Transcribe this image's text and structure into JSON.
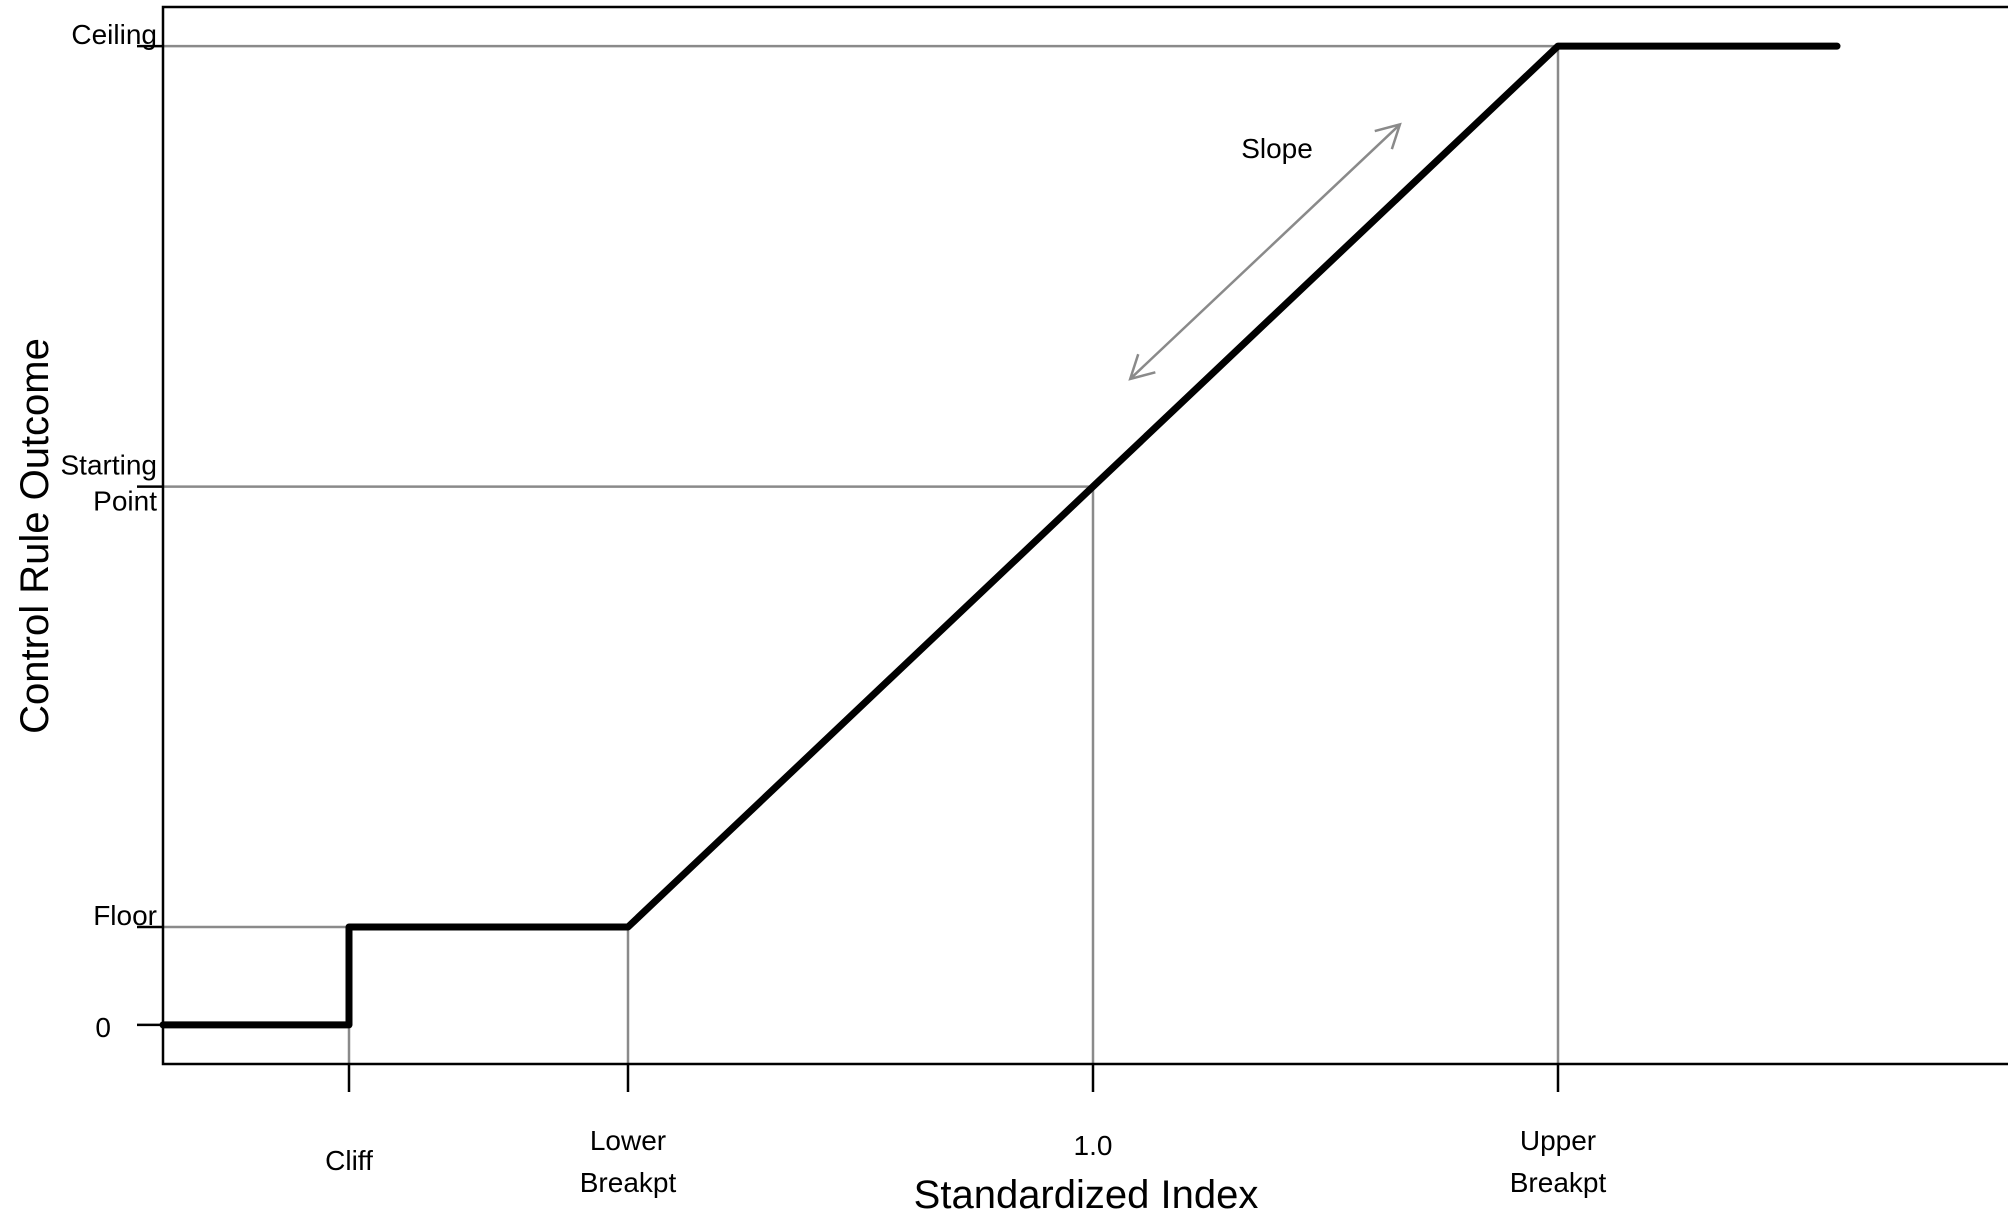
{
  "chart_data": {
    "type": "line",
    "title": "",
    "xlabel": "Standardized Index",
    "ylabel": "Control Rule Outcome",
    "x_ticks": [
      {
        "key": "cliff",
        "lines": [
          "Cliff"
        ]
      },
      {
        "key": "lower_breakpt",
        "lines": [
          "Lower",
          "Breakpt"
        ]
      },
      {
        "key": "one",
        "lines": [
          "1.0"
        ]
      },
      {
        "key": "upper_breakpt",
        "lines": [
          "Upper",
          "Breakpt"
        ]
      }
    ],
    "y_ticks": [
      {
        "key": "zero",
        "lines": [
          "0"
        ]
      },
      {
        "key": "floor",
        "lines": [
          "Floor"
        ]
      },
      {
        "key": "starting_point",
        "lines": [
          "Starting",
          "Point"
        ]
      },
      {
        "key": "ceiling",
        "lines": [
          "Ceiling"
        ]
      }
    ],
    "x_values": {
      "xmin": 0.0,
      "cliff": 0.2,
      "lower_breakpt": 0.5,
      "one": 1.0,
      "upper_breakpt": 1.5,
      "xmax": 1.8
    },
    "y_values": {
      "zero": 0.0,
      "floor": 0.1,
      "starting_point": 0.55,
      "ceiling": 1.0
    },
    "xlim": [
      0.0,
      2.0
    ],
    "ylim": [
      -0.04,
      1.04
    ],
    "series": [
      {
        "x": [
          0.0,
          0.2,
          0.2,
          0.5,
          1.0,
          1.5,
          1.8
        ],
        "y": [
          0.0,
          0.0,
          0.1,
          0.1,
          0.55,
          1.0,
          1.0
        ]
      }
    ],
    "annotations": [
      {
        "text": "Slope",
        "type": "double-arrow",
        "from": [
          1.04,
          0.66
        ],
        "to": [
          1.33,
          0.92
        ]
      }
    ],
    "grid": false,
    "legend": "none",
    "colors": {
      "line": "#000000",
      "reference": "#8a8a8a"
    }
  }
}
